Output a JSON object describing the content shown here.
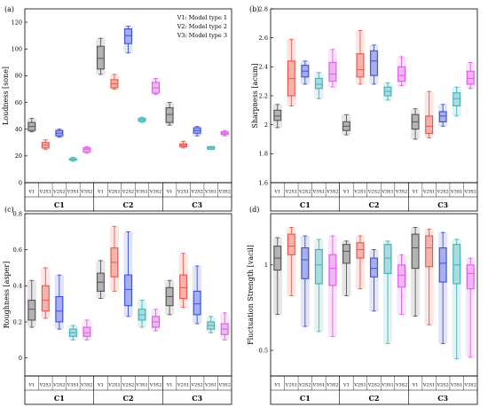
{
  "chart_data": [
    {
      "type": "box",
      "panel_label": "(a)",
      "ylabel": "Loudness [sone]",
      "ylim": [
        0,
        130
      ],
      "yticks": [
        0,
        20,
        40,
        60,
        80,
        100,
        120
      ],
      "legend": [
        "V1: Model type 1",
        "V2: Model type 2",
        "V3: Model type 3"
      ],
      "groups": [
        "C1",
        "C2",
        "C3"
      ],
      "categories": [
        "V1",
        "V2S1",
        "V2S2",
        "V3S1",
        "V3S2"
      ],
      "boxes": [
        {
          "group": "C1",
          "label": "V1",
          "color": "#555555",
          "whisker_low": 38,
          "q1": 39,
          "median": 42,
          "q3": 45,
          "whisker_high": 48
        },
        {
          "group": "C1",
          "label": "V2S1",
          "color": "#e8574a",
          "whisker_low": 25,
          "q1": 26,
          "median": 28,
          "q3": 30,
          "whisker_high": 32
        },
        {
          "group": "C1",
          "label": "V2S2",
          "color": "#3b4fd8",
          "whisker_low": 34,
          "q1": 35,
          "median": 37,
          "q3": 39,
          "whisker_high": 40
        },
        {
          "group": "C1",
          "label": "V3S1",
          "color": "#3fb2b8",
          "whisker_low": 16,
          "q1": 17,
          "median": 17,
          "q3": 18,
          "whisker_high": 19
        },
        {
          "group": "C1",
          "label": "V3S2",
          "color": "#e05ae8",
          "whisker_low": 22,
          "q1": 23,
          "median": 25,
          "q3": 26,
          "whisker_high": 27
        },
        {
          "group": "C2",
          "label": "V1",
          "color": "#555555",
          "whisker_low": 81,
          "q1": 85,
          "median": 93,
          "q3": 102,
          "whisker_high": 108
        },
        {
          "group": "C2",
          "label": "V2S1",
          "color": "#e8574a",
          "whisker_low": 70,
          "q1": 71,
          "median": 74,
          "q3": 77,
          "whisker_high": 81
        },
        {
          "group": "C2",
          "label": "V2S2",
          "color": "#3b4fd8",
          "whisker_low": 97,
          "q1": 104,
          "median": 110,
          "q3": 115,
          "whisker_high": 117
        },
        {
          "group": "C2",
          "label": "V3S1",
          "color": "#3fb2b8",
          "whisker_low": 45,
          "q1": 46,
          "median": 47,
          "q3": 48,
          "whisker_high": 49
        },
        {
          "group": "C2",
          "label": "V3S2",
          "color": "#e05ae8",
          "whisker_low": 66,
          "q1": 67,
          "median": 71,
          "q3": 75,
          "whisker_high": 78
        },
        {
          "group": "C3",
          "label": "V1",
          "color": "#555555",
          "whisker_low": 43,
          "q1": 45,
          "median": 51,
          "q3": 56,
          "whisker_high": 60
        },
        {
          "group": "C3",
          "label": "V2S1",
          "color": "#e8574a",
          "whisker_low": 26,
          "q1": 27,
          "median": 28,
          "q3": 29,
          "whisker_high": 31
        },
        {
          "group": "C3",
          "label": "V2S2",
          "color": "#3b4fd8",
          "whisker_low": 35,
          "q1": 37,
          "median": 39,
          "q3": 41,
          "whisker_high": 42
        },
        {
          "group": "C3",
          "label": "V3S1",
          "color": "#3fb2b8",
          "whisker_low": 25,
          "q1": 25,
          "median": 26,
          "q3": 27,
          "whisker_high": 27
        },
        {
          "group": "C3",
          "label": "V3S2",
          "color": "#e05ae8",
          "whisker_low": 35,
          "q1": 36,
          "median": 37,
          "q3": 38,
          "whisker_high": 39
        }
      ]
    },
    {
      "type": "box",
      "panel_label": "(b)",
      "ylabel": "Sharpness [acum]",
      "ylim": [
        1.6,
        2.8
      ],
      "yticks": [
        1.6,
        1.8,
        2.0,
        2.2,
        2.4,
        2.6,
        2.8
      ],
      "groups": [
        "C1",
        "C2",
        "C3"
      ],
      "categories": [
        "V1",
        "V2S1",
        "V2S2",
        "V3S1",
        "V3S2"
      ],
      "boxes": [
        {
          "group": "C1",
          "label": "V1",
          "color": "#555555",
          "whisker_low": 1.98,
          "q1": 2.03,
          "median": 2.06,
          "q3": 2.1,
          "whisker_high": 2.14
        },
        {
          "group": "C1",
          "label": "V2S1",
          "color": "#e8574a",
          "whisker_low": 2.13,
          "q1": 2.2,
          "median": 2.32,
          "q3": 2.44,
          "whisker_high": 2.59
        },
        {
          "group": "C1",
          "label": "V2S2",
          "color": "#3b4fd8",
          "whisker_low": 2.28,
          "q1": 2.33,
          "median": 2.37,
          "q3": 2.41,
          "whisker_high": 2.44
        },
        {
          "group": "C1",
          "label": "V3S1",
          "color": "#3fb2b8",
          "whisker_low": 2.18,
          "q1": 2.25,
          "median": 2.28,
          "q3": 2.32,
          "whisker_high": 2.36
        },
        {
          "group": "C1",
          "label": "V3S2",
          "color": "#e05ae8",
          "whisker_low": 2.26,
          "q1": 2.3,
          "median": 2.35,
          "q3": 2.43,
          "whisker_high": 2.52
        },
        {
          "group": "C2",
          "label": "V1",
          "color": "#555555",
          "whisker_low": 1.93,
          "q1": 1.96,
          "median": 1.99,
          "q3": 2.02,
          "whisker_high": 2.07
        },
        {
          "group": "C2",
          "label": "V2S1",
          "color": "#e8574a",
          "whisker_low": 2.28,
          "q1": 2.33,
          "median": 2.38,
          "q3": 2.49,
          "whisker_high": 2.65
        },
        {
          "group": "C2",
          "label": "V2S2",
          "color": "#3b4fd8",
          "whisker_low": 2.28,
          "q1": 2.34,
          "median": 2.44,
          "q3": 2.51,
          "whisker_high": 2.55
        },
        {
          "group": "C2",
          "label": "V3S1",
          "color": "#3fb2b8",
          "whisker_low": 2.17,
          "q1": 2.2,
          "median": 2.23,
          "q3": 2.26,
          "whisker_high": 2.29
        },
        {
          "group": "C2",
          "label": "V3S2",
          "color": "#e05ae8",
          "whisker_low": 2.27,
          "q1": 2.3,
          "median": 2.34,
          "q3": 2.4,
          "whisker_high": 2.47
        },
        {
          "group": "C3",
          "label": "V1",
          "color": "#555555",
          "whisker_low": 1.9,
          "q1": 1.97,
          "median": 2.02,
          "q3": 2.07,
          "whisker_high": 2.11
        },
        {
          "group": "C3",
          "label": "V2S1",
          "color": "#e8574a",
          "whisker_low": 1.91,
          "q1": 1.94,
          "median": 1.99,
          "q3": 2.06,
          "whisker_high": 2.23
        },
        {
          "group": "C3",
          "label": "V2S2",
          "color": "#3b4fd8",
          "whisker_low": 1.99,
          "q1": 2.02,
          "median": 2.06,
          "q3": 2.09,
          "whisker_high": 2.14
        },
        {
          "group": "C3",
          "label": "V3S1",
          "color": "#3fb2b8",
          "whisker_low": 2.06,
          "q1": 2.13,
          "median": 2.18,
          "q3": 2.22,
          "whisker_high": 2.26
        },
        {
          "group": "C3",
          "label": "V3S2",
          "color": "#e05ae8",
          "whisker_low": 2.25,
          "q1": 2.28,
          "median": 2.32,
          "q3": 2.37,
          "whisker_high": 2.43
        }
      ]
    },
    {
      "type": "box",
      "panel_label": "(c)",
      "ylabel": "Roughness [asper]",
      "ylim": [
        -0.1,
        0.8
      ],
      "yticks": [
        0.0,
        0.2,
        0.4,
        0.6,
        0.8
      ],
      "groups": [
        "C1",
        "C2",
        "C3"
      ],
      "categories": [
        "V1",
        "V2S1",
        "V2S2",
        "V3S1",
        "V3S2"
      ],
      "boxes": [
        {
          "group": "C1",
          "label": "V1",
          "color": "#555555",
          "whisker_low": 0.17,
          "q1": 0.21,
          "median": 0.27,
          "q3": 0.32,
          "whisker_high": 0.43
        },
        {
          "group": "C1",
          "label": "V2S1",
          "color": "#e8574a",
          "whisker_low": 0.22,
          "q1": 0.26,
          "median": 0.32,
          "q3": 0.4,
          "whisker_high": 0.5
        },
        {
          "group": "C1",
          "label": "V2S2",
          "color": "#3b4fd8",
          "whisker_low": 0.16,
          "q1": 0.2,
          "median": 0.26,
          "q3": 0.34,
          "whisker_high": 0.46
        },
        {
          "group": "C1",
          "label": "V3S1",
          "color": "#3fb2b8",
          "whisker_low": 0.1,
          "q1": 0.12,
          "median": 0.14,
          "q3": 0.16,
          "whisker_high": 0.18
        },
        {
          "group": "C1",
          "label": "V3S2",
          "color": "#e05ae8",
          "whisker_low": 0.1,
          "q1": 0.12,
          "median": 0.14,
          "q3": 0.17,
          "whisker_high": 0.21
        },
        {
          "group": "C2",
          "label": "V1",
          "color": "#555555",
          "whisker_low": 0.33,
          "q1": 0.37,
          "median": 0.42,
          "q3": 0.47,
          "whisker_high": 0.54
        },
        {
          "group": "C2",
          "label": "V2S1",
          "color": "#e8574a",
          "whisker_low": 0.37,
          "q1": 0.45,
          "median": 0.53,
          "q3": 0.61,
          "whisker_high": 0.73
        },
        {
          "group": "C2",
          "label": "V2S2",
          "color": "#3b4fd8",
          "whisker_low": 0.23,
          "q1": 0.29,
          "median": 0.38,
          "q3": 0.46,
          "whisker_high": 0.7
        },
        {
          "group": "C2",
          "label": "V3S1",
          "color": "#3fb2b8",
          "whisker_low": 0.17,
          "q1": 0.21,
          "median": 0.24,
          "q3": 0.27,
          "whisker_high": 0.32
        },
        {
          "group": "C2",
          "label": "V3S2",
          "color": "#e05ae8",
          "whisker_low": 0.15,
          "q1": 0.17,
          "median": 0.2,
          "q3": 0.23,
          "whisker_high": 0.27
        },
        {
          "group": "C3",
          "label": "V1",
          "color": "#555555",
          "whisker_low": 0.24,
          "q1": 0.29,
          "median": 0.34,
          "q3": 0.39,
          "whisker_high": 0.43
        },
        {
          "group": "C3",
          "label": "V2S1",
          "color": "#e8574a",
          "whisker_low": 0.28,
          "q1": 0.33,
          "median": 0.39,
          "q3": 0.46,
          "whisker_high": 0.58
        },
        {
          "group": "C3",
          "label": "V2S2",
          "color": "#3b4fd8",
          "whisker_low": 0.19,
          "q1": 0.24,
          "median": 0.3,
          "q3": 0.37,
          "whisker_high": 0.51
        },
        {
          "group": "C3",
          "label": "V3S1",
          "color": "#3fb2b8",
          "whisker_low": 0.14,
          "q1": 0.16,
          "median": 0.18,
          "q3": 0.2,
          "whisker_high": 0.23
        },
        {
          "group": "C3",
          "label": "V3S2",
          "color": "#e05ae8",
          "whisker_low": 0.1,
          "q1": 0.13,
          "median": 0.16,
          "q3": 0.19,
          "whisker_high": 0.25
        }
      ]
    },
    {
      "type": "box",
      "panel_label": "(d)",
      "ylabel": "Fluctuation Strength [vacil]",
      "ylim": [
        0.35,
        1.3
      ],
      "yticks": [
        0.5,
        1.0
      ],
      "groups": [
        "C1",
        "C2",
        "C3"
      ],
      "categories": [
        "V1",
        "V2S1",
        "V2S2",
        "V3S1",
        "V3S2"
      ],
      "boxes": [
        {
          "group": "C1",
          "label": "V1",
          "color": "#555555",
          "whisker_low": 0.71,
          "q1": 0.97,
          "median": 1.04,
          "q3": 1.11,
          "whisker_high": 1.16
        },
        {
          "group": "C1",
          "label": "V2S1",
          "color": "#e8574a",
          "whisker_low": 0.82,
          "q1": 1.06,
          "median": 1.11,
          "q3": 1.18,
          "whisker_high": 1.22
        },
        {
          "group": "C1",
          "label": "V2S2",
          "color": "#3b4fd8",
          "whisker_low": 0.64,
          "q1": 0.92,
          "median": 1.03,
          "q3": 1.1,
          "whisker_high": 1.17
        },
        {
          "group": "C1",
          "label": "V3S1",
          "color": "#3fb2b8",
          "whisker_low": 0.61,
          "q1": 0.89,
          "median": 1.0,
          "q3": 1.09,
          "whisker_high": 1.15
        },
        {
          "group": "C1",
          "label": "V3S2",
          "color": "#e05ae8",
          "whisker_low": 0.58,
          "q1": 0.88,
          "median": 0.98,
          "q3": 1.06,
          "whisker_high": 1.17
        },
        {
          "group": "C2",
          "label": "V1",
          "color": "#555555",
          "whisker_low": 0.82,
          "q1": 1.01,
          "median": 1.08,
          "q3": 1.12,
          "whisker_high": 1.14
        },
        {
          "group": "C2",
          "label": "V2S1",
          "color": "#e8574a",
          "whisker_low": 0.86,
          "q1": 1.04,
          "median": 1.09,
          "q3": 1.13,
          "whisker_high": 1.17
        },
        {
          "group": "C2",
          "label": "V2S2",
          "color": "#3b4fd8",
          "whisker_low": 0.73,
          "q1": 0.93,
          "median": 0.98,
          "q3": 1.04,
          "whisker_high": 1.09
        },
        {
          "group": "C2",
          "label": "V3S1",
          "color": "#3fb2b8",
          "whisker_low": 0.54,
          "q1": 0.95,
          "median": 1.04,
          "q3": 1.12,
          "whisker_high": 1.14
        },
        {
          "group": "C2",
          "label": "V3S2",
          "color": "#e05ae8",
          "whisker_low": 0.71,
          "q1": 0.87,
          "median": 0.94,
          "q3": 1.0,
          "whisker_high": 1.06
        },
        {
          "group": "C3",
          "label": "V1",
          "color": "#555555",
          "whisker_low": 0.7,
          "q1": 0.98,
          "median": 1.1,
          "q3": 1.18,
          "whisker_high": 1.22
        },
        {
          "group": "C3",
          "label": "V2S1",
          "color": "#e8574a",
          "whisker_low": 0.65,
          "q1": 0.99,
          "median": 1.1,
          "q3": 1.17,
          "whisker_high": 1.21
        },
        {
          "group": "C3",
          "label": "V2S2",
          "color": "#3b4fd8",
          "whisker_low": 0.54,
          "q1": 0.9,
          "median": 1.01,
          "q3": 1.1,
          "whisker_high": 1.19
        },
        {
          "group": "C3",
          "label": "V3S1",
          "color": "#3fb2b8",
          "whisker_low": 0.45,
          "q1": 0.89,
          "median": 1.0,
          "q3": 1.12,
          "whisker_high": 1.15
        },
        {
          "group": "C3",
          "label": "V3S2",
          "color": "#e05ae8",
          "whisker_low": 0.46,
          "q1": 0.86,
          "median": 0.95,
          "q3": 1.0,
          "whisker_high": 1.04
        }
      ]
    }
  ]
}
